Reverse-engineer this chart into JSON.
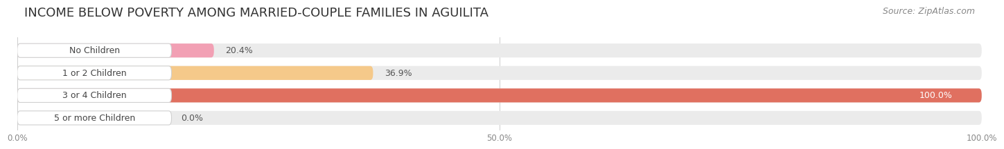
{
  "title": "INCOME BELOW POVERTY AMONG MARRIED-COUPLE FAMILIES IN AGUILITA",
  "source": "Source: ZipAtlas.com",
  "categories": [
    "No Children",
    "1 or 2 Children",
    "3 or 4 Children",
    "5 or more Children"
  ],
  "values": [
    20.4,
    36.9,
    100.0,
    0.0
  ],
  "bar_colors": [
    "#f2a0b4",
    "#f5c98a",
    "#e07060",
    "#a8c0d8"
  ],
  "bar_bg_color": "#ebebeb",
  "xlim": [
    0,
    100
  ],
  "xticks": [
    0.0,
    50.0,
    100.0
  ],
  "xtick_labels": [
    "0.0%",
    "50.0%",
    "100.0%"
  ],
  "title_fontsize": 13,
  "source_fontsize": 9,
  "label_fontsize": 9,
  "value_fontsize": 9,
  "background_color": "#ffffff"
}
